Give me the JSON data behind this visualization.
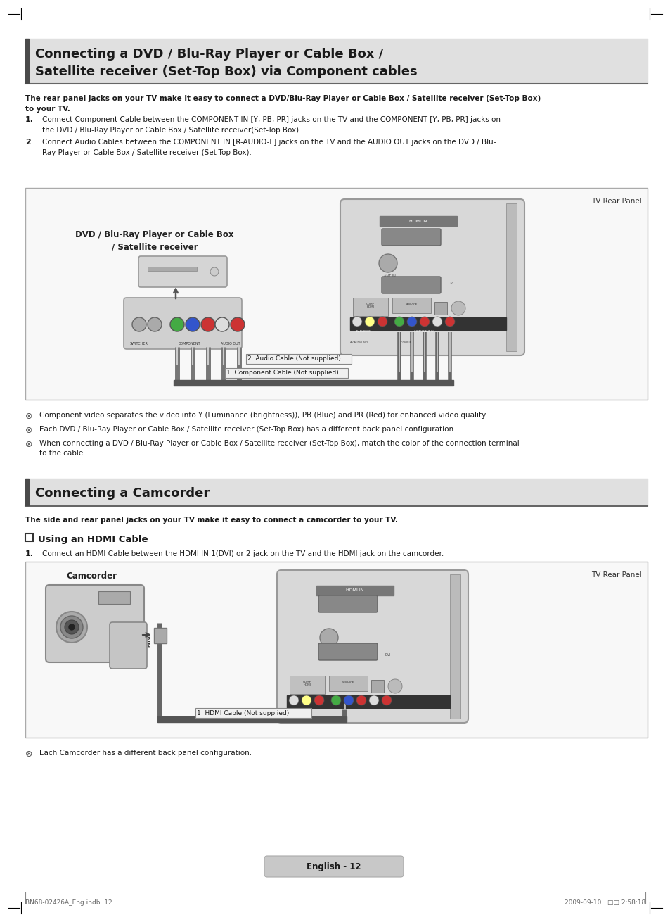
{
  "bg_color": "#ffffff",
  "section1_title_line1": "Connecting a DVD / Blu-Ray Player or Cable Box /",
  "section1_title_line2": "Satellite receiver (Set-Top Box) via Component cables",
  "section1_bold_intro": "The rear panel jacks on your TV make it easy to connect a DVD/Blu-Ray Player or Cable Box / Satellite receiver (Set-Top Box)\nto your TV.",
  "section1_step1": "Connect Component Cable between the COMPONENT IN [Y, PB, PR] jacks on the TV and the COMPONENT [Y, PB, PR] jacks on\nthe DVD / Blu-Ray Player or Cable Box / Satellite receiver(Set-Top Box).",
  "section1_step2": "Connect Audio Cables between the COMPONENT IN [R-AUDIO-L] jacks on the TV and the AUDIO OUT jacks on the DVD / Blu-\nRay Player or Cable Box / Satellite receiver (Set-Top Box).",
  "section1_diagram_label_tv": "TV Rear Panel",
  "section1_diagram_label_device": "DVD / Blu-Ray Player or Cable Box\n/ Satellite receiver",
  "section1_diagram_label1": "1  Component Cable (Not supplied)",
  "section1_diagram_label2": "2  Audio Cable (Not supplied)",
  "section1_note1": "Component video separates the video into Y (Luminance (brightness)), PB (Blue) and PR (Red) for enhanced video quality.",
  "section1_note2": "Each DVD / Blu-Ray Player or Cable Box / Satellite receiver (Set-Top Box) has a different back panel configuration.",
  "section1_note3": "When connecting a DVD / Blu-Ray Player or Cable Box / Satellite receiver (Set-Top Box), match the color of the connection terminal\nto the cable.",
  "section2_title": "Connecting a Camcorder",
  "section2_bold_intro": "The side and rear panel jacks on your TV make it easy to connect a camcorder to your TV.",
  "section2_sub": "Using an HDMI Cable",
  "section2_step1": "Connect an HDMI Cable between the HDMI IN 1(DVI) or 2 jack on the TV and the HDMI jack on the camcorder.",
  "section2_diagram_label_tv": "TV Rear Panel",
  "section2_diagram_label_device": "Camcorder",
  "section2_diagram_label1": "1  HDMI Cable (Not supplied)",
  "section2_note1": "Each Camcorder has a different back panel configuration.",
  "footer_page": "English - 12",
  "footer_left": "BN68-02426A_Eng.indb  12",
  "footer_right": "2009-09-10   □□ 2:58:18",
  "title_bar_color": "#4a4a4a",
  "title_bg_color": "#e0e0e0",
  "left_bar_color": "#555555",
  "hr_color": "#666666",
  "diagram_bg": "#f5f5f5",
  "diagram_border": "#aaaaaa",
  "tv_panel_bg": "#d0d0d0",
  "tv_panel_border": "#888888",
  "dark_bar_color": "#888888",
  "cable_color": "#555555",
  "note_symbol": "⊗"
}
